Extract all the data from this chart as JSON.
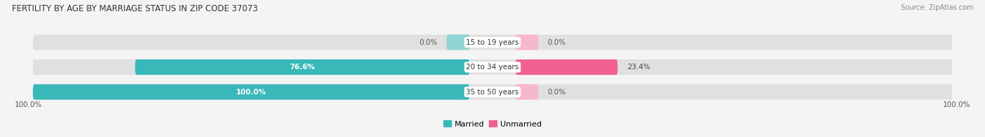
{
  "title": "FERTILITY BY AGE BY MARRIAGE STATUS IN ZIP CODE 37073",
  "source": "Source: ZipAtlas.com",
  "categories": [
    "15 to 19 years",
    "20 to 34 years",
    "35 to 50 years"
  ],
  "married_values": [
    0.0,
    76.6,
    100.0
  ],
  "unmarried_values": [
    0.0,
    23.4,
    0.0
  ],
  "married_color": "#38b8b8",
  "unmarried_color": "#f06090",
  "married_light": "#90d4d4",
  "unmarried_light": "#f8b8cc",
  "bar_bg_color": "#e0e0e0",
  "bg_color": "#f4f4f4",
  "title_fontsize": 8.5,
  "label_fontsize": 7.5,
  "value_fontsize": 7.5,
  "source_fontsize": 7,
  "legend_fontsize": 8,
  "max_val": 100.0,
  "left_label": "100.0%",
  "right_label": "100.0%"
}
